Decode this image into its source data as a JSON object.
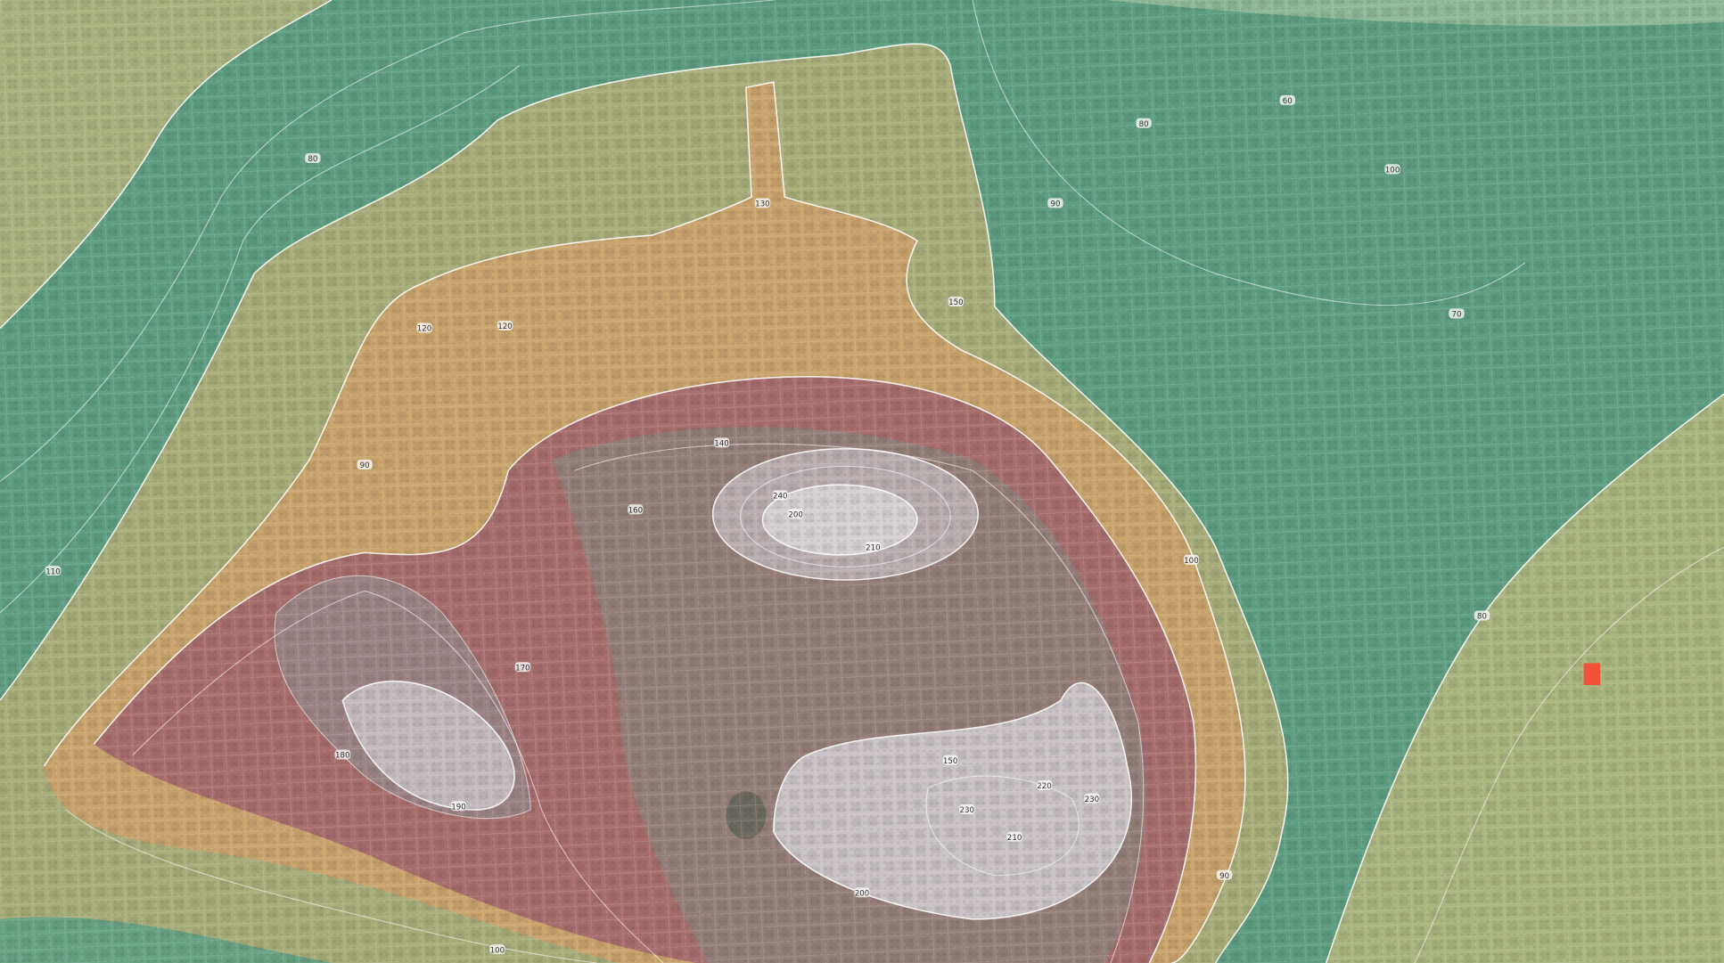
{
  "map": {
    "contour_labels": [
      "80",
      "90",
      "100",
      "110",
      "120",
      "130",
      "140",
      "150",
      "160",
      "170",
      "180",
      "190",
      "200",
      "210",
      "220",
      "230",
      "240",
      "70",
      "60",
      "80",
      "90",
      "100",
      "120",
      "150",
      "200",
      "210",
      "230",
      "100",
      "80",
      "90"
    ]
  }
}
